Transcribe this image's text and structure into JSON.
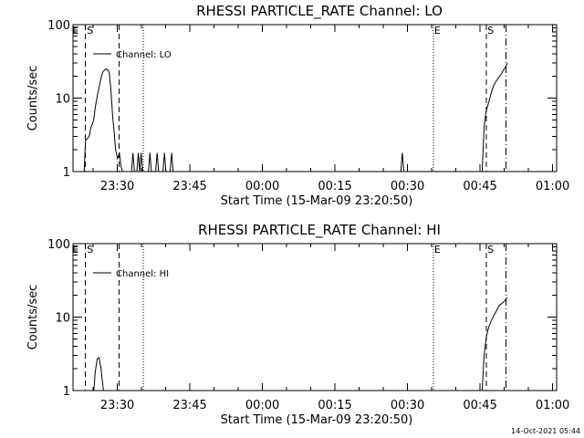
{
  "timestamp": "14-Oct-2021 05:44",
  "chart_data": [
    {
      "type": "line",
      "title": "RHESSI PARTICLE_RATE Channel: LO",
      "xlabel": "Start Time (15-Mar-09 23:20:50)",
      "ylabel": "Counts/sec",
      "yscale": "log",
      "ylim": [
        1,
        100
      ],
      "xlim_minutes": [
        0,
        100
      ],
      "xticks": [
        {
          "t": 9.17,
          "label": "23:30"
        },
        {
          "t": 24.17,
          "label": "23:45"
        },
        {
          "t": 39.17,
          "label": "00:00"
        },
        {
          "t": 54.17,
          "label": "00:15"
        },
        {
          "t": 69.17,
          "label": "00:30"
        },
        {
          "t": 84.17,
          "label": "00:45"
        },
        {
          "t": 99.17,
          "label": "01:00"
        }
      ],
      "yticks": [
        {
          "v": 1,
          "label": "1"
        },
        {
          "v": 10,
          "label": "10"
        },
        {
          "v": 100,
          "label": "100"
        }
      ],
      "legend": {
        "label": "Channel: LO",
        "position": "top-left"
      },
      "markers": [
        {
          "t": 2.5,
          "style": "dashed",
          "label": "E"
        },
        {
          "t": 2.5,
          "style": "dashed",
          "label": "S"
        },
        {
          "t": 9.5,
          "style": "dashed",
          "label": ""
        },
        {
          "t": 14.5,
          "style": "dotted",
          "label": ""
        },
        {
          "t": 74.5,
          "style": "dotted",
          "label": "E"
        },
        {
          "t": 85.5,
          "style": "dashed",
          "label": "S"
        },
        {
          "t": 89.5,
          "style": "dashdot",
          "label": ""
        }
      ],
      "series": [
        {
          "segments": [
            [
              [
                2.3,
                1
              ],
              [
                2.6,
                2.7
              ],
              [
                3.0,
                2.8
              ],
              [
                3.4,
                3.1
              ],
              [
                3.7,
                4.0
              ],
              [
                4.0,
                4.4
              ],
              [
                4.3,
                5.2
              ],
              [
                4.6,
                7.5
              ],
              [
                5.0,
                10.5
              ],
              [
                5.4,
                14
              ],
              [
                5.8,
                19
              ],
              [
                6.2,
                23
              ],
              [
                6.8,
                25
              ],
              [
                7.2,
                24
              ],
              [
                7.5,
                22
              ],
              [
                7.8,
                14
              ],
              [
                8.0,
                9.0
              ],
              [
                8.2,
                5.5
              ],
              [
                8.5,
                3.5
              ],
              [
                8.8,
                2.0
              ],
              [
                9.2,
                1.5
              ],
              [
                9.6,
                1.8
              ],
              [
                9.9,
                1.2
              ],
              [
                10.2,
                1
              ]
            ],
            [
              [
                12.1,
                1
              ],
              [
                12.4,
                1.8
              ],
              [
                12.7,
                1
              ]
            ],
            [
              [
                13.2,
                1
              ],
              [
                13.5,
                1.8
              ],
              [
                13.8,
                1
              ],
              [
                14.1,
                1.8
              ],
              [
                14.4,
                1
              ]
            ],
            [
              [
                15.6,
                1
              ],
              [
                15.9,
                1.8
              ],
              [
                16.2,
                1
              ]
            ],
            [
              [
                17.1,
                1
              ],
              [
                17.4,
                1.8
              ],
              [
                17.7,
                1
              ]
            ],
            [
              [
                18.6,
                1
              ],
              [
                18.9,
                1.8
              ],
              [
                19.2,
                1
              ]
            ],
            [
              [
                20.1,
                1
              ],
              [
                20.4,
                1.8
              ],
              [
                20.7,
                1
              ]
            ],
            [
              [
                67.8,
                1
              ],
              [
                68.1,
                1.8
              ],
              [
                68.4,
                1
              ]
            ],
            [
              [
                84.6,
                1
              ],
              [
                85.0,
                4.0
              ],
              [
                85.4,
                6.5
              ],
              [
                86.0,
                9.0
              ],
              [
                86.5,
                12
              ],
              [
                87.0,
                15
              ],
              [
                87.5,
                17
              ],
              [
                88.0,
                19
              ],
              [
                88.5,
                21
              ],
              [
                89.0,
                24
              ],
              [
                89.5,
                27
              ],
              [
                89.8,
                30
              ]
            ]
          ]
        }
      ]
    },
    {
      "type": "line",
      "title": "RHESSI PARTICLE_RATE Channel: HI",
      "xlabel": "Start Time (15-Mar-09 23:20:50)",
      "ylabel": "Counts/sec",
      "yscale": "log",
      "ylim": [
        1,
        100
      ],
      "xlim_minutes": [
        0,
        100
      ],
      "xticks": [
        {
          "t": 9.17,
          "label": "23:30"
        },
        {
          "t": 24.17,
          "label": "23:45"
        },
        {
          "t": 39.17,
          "label": "00:00"
        },
        {
          "t": 54.17,
          "label": "00:15"
        },
        {
          "t": 69.17,
          "label": "00:30"
        },
        {
          "t": 84.17,
          "label": "00:45"
        },
        {
          "t": 99.17,
          "label": "01:00"
        }
      ],
      "yticks": [
        {
          "v": 1,
          "label": "1"
        },
        {
          "v": 10,
          "label": "10"
        },
        {
          "v": 100,
          "label": "100"
        }
      ],
      "legend": {
        "label": "Channel: HI",
        "position": "top-left"
      },
      "markers": [
        {
          "t": 2.5,
          "style": "dashed",
          "label": "E"
        },
        {
          "t": 2.5,
          "style": "dashed",
          "label": "S"
        },
        {
          "t": 9.5,
          "style": "dashed",
          "label": ""
        },
        {
          "t": 14.5,
          "style": "dotted",
          "label": ""
        },
        {
          "t": 74.5,
          "style": "dotted",
          "label": "E"
        },
        {
          "t": 85.5,
          "style": "dashed",
          "label": "S"
        },
        {
          "t": 89.5,
          "style": "dashdot",
          "label": ""
        }
      ],
      "series": [
        {
          "segments": [
            [
              [
                4.3,
                1
              ],
              [
                4.6,
                1.8
              ],
              [
                5.0,
                2.7
              ],
              [
                5.4,
                2.8
              ],
              [
                5.8,
                2.0
              ],
              [
                6.1,
                1.3
              ],
              [
                6.3,
                1
              ]
            ],
            [
              [
                84.6,
                1
              ],
              [
                85.0,
                3.0
              ],
              [
                85.5,
                5.5
              ],
              [
                86.0,
                7.5
              ],
              [
                86.5,
                9.0
              ],
              [
                87.0,
                10.5
              ],
              [
                87.5,
                12
              ],
              [
                88.0,
                14
              ],
              [
                88.5,
                15
              ],
              [
                89.0,
                16
              ],
              [
                89.5,
                17.5
              ],
              [
                89.8,
                18.5
              ]
            ]
          ]
        }
      ]
    }
  ]
}
